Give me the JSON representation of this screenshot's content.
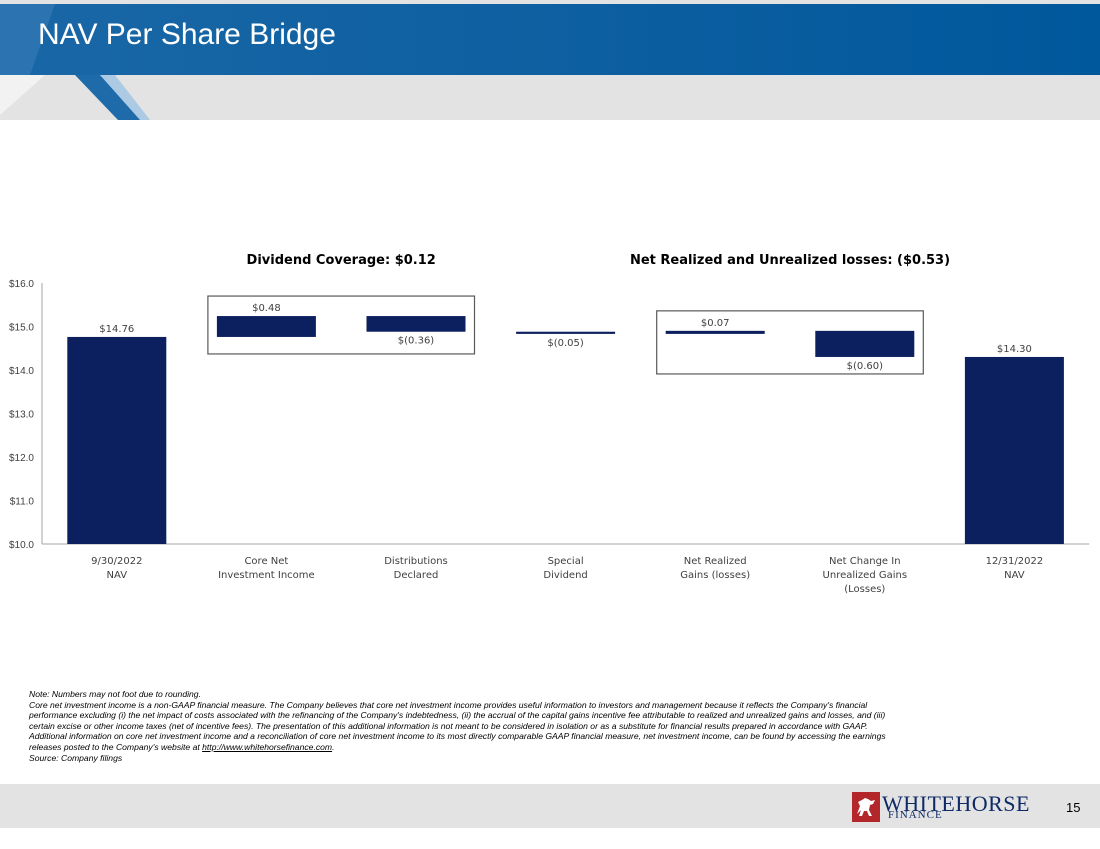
{
  "header": {
    "title": "NAV Per Share Bridge"
  },
  "colors": {
    "header_blue": "#00589c",
    "bar_navy": "#0c1f5e",
    "band_grey": "#e3e3e3"
  },
  "chart_data": {
    "type": "waterfall",
    "ylim": [
      10,
      16
    ],
    "y_ticks": [
      10,
      11,
      12,
      13,
      14,
      15,
      16
    ],
    "y_tick_labels": [
      "$10.0",
      "$11.0",
      "$12.0",
      "$13.0",
      "$14.0",
      "$15.0",
      "$16.0"
    ],
    "categories": [
      [
        "9/30/2022",
        "NAV"
      ],
      [
        "Core Net",
        "Investment Income"
      ],
      [
        "Distributions",
        "Declared"
      ],
      [
        "Special",
        "Dividend"
      ],
      [
        "Net Realized",
        "Gains (losses)"
      ],
      [
        "Net Change In",
        "Unrealized Gains",
        "(Losses)"
      ],
      [
        "12/31/2022",
        "NAV"
      ]
    ],
    "bars": [
      {
        "kind": "total",
        "value": 14.76,
        "label": "$14.76",
        "base": 10,
        "top": 14.76
      },
      {
        "kind": "change",
        "value": 0.48,
        "label": "$0.48",
        "base": 14.76,
        "top": 15.24
      },
      {
        "kind": "change",
        "value": -0.36,
        "label": "$(0.36)",
        "base": 14.88,
        "top": 15.24
      },
      {
        "kind": "change",
        "value": -0.05,
        "label": "$(0.05)",
        "base": 14.83,
        "top": 14.88
      },
      {
        "kind": "change",
        "value": 0.07,
        "label": "$0.07",
        "base": 14.83,
        "top": 14.9
      },
      {
        "kind": "change",
        "value": -0.6,
        "label": "$(0.60)",
        "base": 14.3,
        "top": 14.9
      },
      {
        "kind": "total",
        "value": 14.3,
        "label": "$14.30",
        "base": 10,
        "top": 14.3
      }
    ],
    "groups": [
      {
        "title": "Dividend Coverage: $0.12",
        "from": 1,
        "to": 2
      },
      {
        "title": "Net Realized and Unrealized losses: ($0.53)",
        "from": 4,
        "to": 5
      }
    ]
  },
  "notes": {
    "lines": [
      "Note: Numbers may not foot due to rounding.",
      "Core net investment income is a non-GAAP financial measure. The Company believes that core net investment income provides useful information to investors and management because it reflects the Company's financial",
      "performance excluding (i) the net impact of costs associated with the refinancing of the Company's indebtedness, (ii) the accrual of the capital gains incentive fee attributable to realized and unrealized gains and losses, and (iii)",
      "certain excise or other income taxes (net of incentive fees). The presentation of this additional information is not meant to be considered in isolation or as a substitute for financial results prepared in accordance with GAAP.",
      "Additional information on core net investment income and a reconciliation of core net investment income to its most directly comparable GAAP financial measure, net investment income, can be found by accessing the earnings"
    ],
    "website_prefix": "releases posted to the Company's website at ",
    "website_link": "http://www.whitehorsefinance.com",
    "website_suffix": ".",
    "source": "Source: Company filings"
  },
  "footer": {
    "logo_text": "WHITEHORSE",
    "logo_sub": "FINANCE",
    "page_number": "15"
  }
}
